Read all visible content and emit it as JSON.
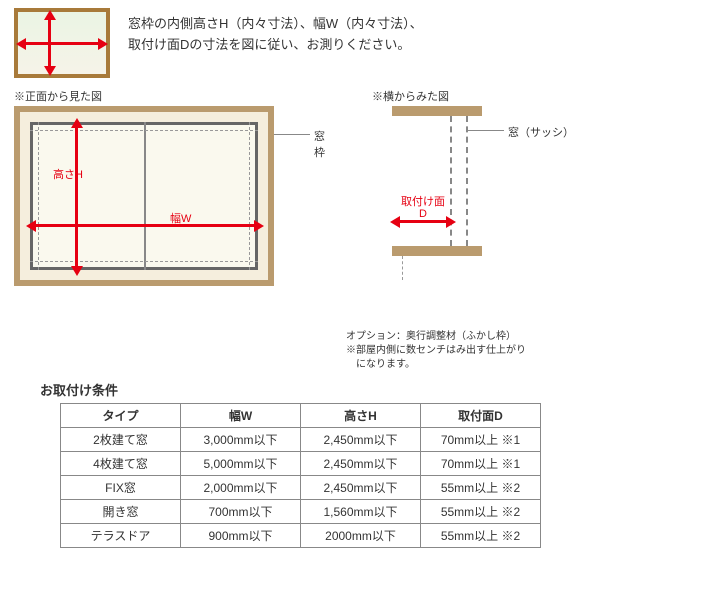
{
  "intro": {
    "line1": "窓枠の内側高さH（内々寸法）、幅W（内々寸法）、",
    "line2": "取付け面Dの寸法を図に従い、お測りください。"
  },
  "diagrams": {
    "front_caption": "※正面から見た図",
    "side_caption": "※横からみた図",
    "label_height": "高さH",
    "label_width": "幅W",
    "label_frame": "窓枠",
    "label_sash": "窓（サッシ）",
    "label_depth1": "取付け面",
    "label_depth2": "D",
    "option_l1": "オプション：奥行調整材（ふかし枠）",
    "option_l2": "※部屋内側に数センチはみ出す仕上がり",
    "option_l3": "　になります。"
  },
  "table": {
    "title": "お取付け条件",
    "headers": [
      "タイプ",
      "幅W",
      "高さH",
      "取付面D"
    ],
    "rows": [
      [
        "2枚建て窓",
        "3,000mm以下",
        "2,450mm以下",
        "70mm以上 ※1"
      ],
      [
        "4枚建て窓",
        "5,000mm以下",
        "2,450mm以下",
        "70mm以上 ※1"
      ],
      [
        "FIX窓",
        "2,000mm以下",
        "2,450mm以下",
        "55mm以上 ※2"
      ],
      [
        "開き窓",
        "700mm以下",
        "1,560mm以下",
        "55mm以上 ※2"
      ],
      [
        "テラスドア",
        "900mm以下",
        "2000mm以下",
        "55mm以上 ※2"
      ]
    ]
  },
  "colors": {
    "red": "#e60012",
    "wood": "#ba9b6e",
    "cream": "#f5eedd",
    "gray": "#888"
  }
}
